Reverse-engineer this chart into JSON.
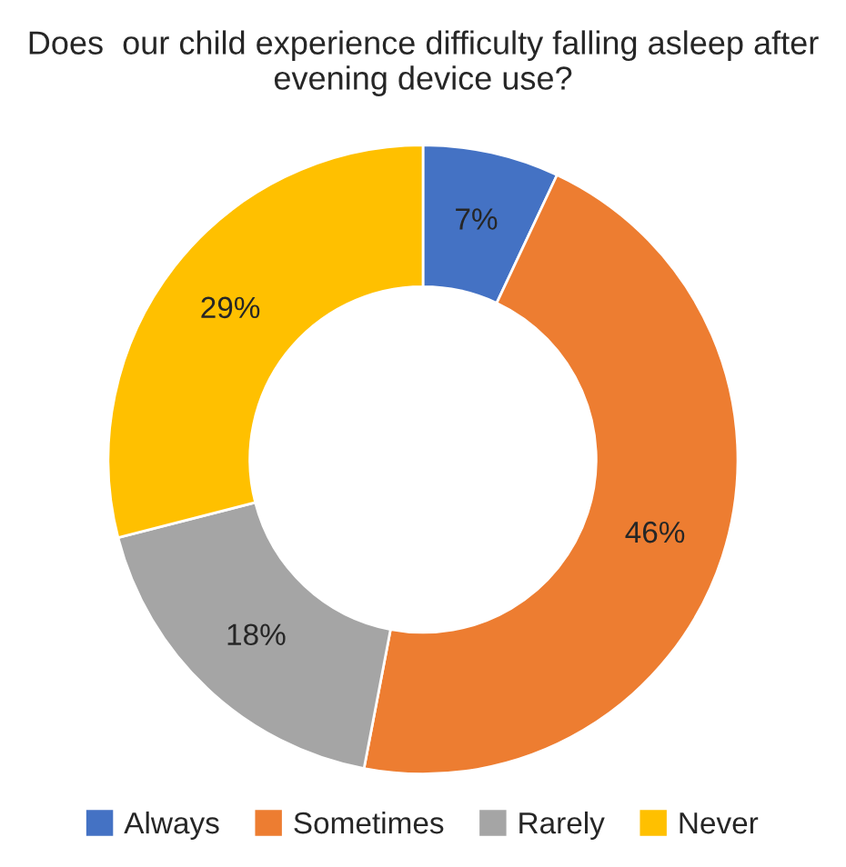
{
  "chart_data": {
    "type": "donut",
    "title": "Does  our child experience difficulty falling asleep after evening device use?",
    "categories": [
      "Always",
      "Sometimes",
      "Rarely",
      "Never"
    ],
    "values": [
      7,
      46,
      18,
      29
    ],
    "value_labels": [
      "7%",
      "46%",
      "18%",
      "29%"
    ],
    "colors": [
      "#4472c4",
      "#ed7d31",
      "#a5a5a5",
      "#ffc000"
    ],
    "legend": "bottom"
  }
}
